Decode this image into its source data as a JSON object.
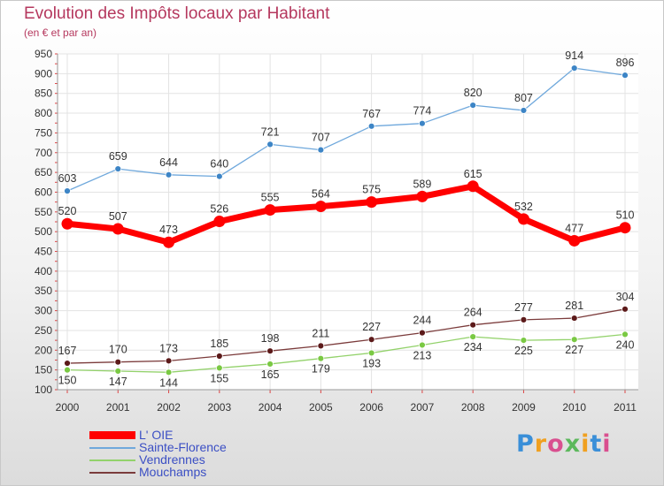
{
  "chart_data": {
    "type": "line",
    "title": "Evolution des Impôts locaux par Habitant",
    "subtitle": "(en € et par an)",
    "xlabel": "",
    "ylabel": "",
    "categories": [
      "2000",
      "2001",
      "2002",
      "2003",
      "2004",
      "2005",
      "2006",
      "2007",
      "2008",
      "2009",
      "2010",
      "2011"
    ],
    "ylim": [
      100,
      950
    ],
    "yticks": [
      100,
      150,
      200,
      250,
      300,
      350,
      400,
      450,
      500,
      550,
      600,
      650,
      700,
      750,
      800,
      850,
      900,
      950
    ],
    "grid": true,
    "legend_position": "bottom-left",
    "series": [
      {
        "name": "L' OIE",
        "values": [
          520,
          507,
          473,
          526,
          555,
          564,
          575,
          589,
          615,
          532,
          477,
          510
        ],
        "color": "#ff0000",
        "marker": "#ff0000"
      },
      {
        "name": "Sainte-Florence",
        "values": [
          603,
          659,
          644,
          640,
          721,
          707,
          767,
          774,
          820,
          807,
          914,
          896
        ],
        "color": "#6fa8dc",
        "marker": "#3d85c6"
      },
      {
        "name": "Vendrennes",
        "values": [
          150,
          147,
          144,
          155,
          165,
          179,
          193,
          213,
          234,
          225,
          227,
          240
        ],
        "color": "#93d26b",
        "marker": "#7ac943"
      },
      {
        "name": "Mouchamps",
        "values": [
          167,
          170,
          173,
          185,
          198,
          211,
          227,
          244,
          264,
          277,
          281,
          304
        ],
        "color": "#7b3b3b",
        "marker": "#5c1a1a"
      }
    ]
  },
  "logo": {
    "text": "Proxiti",
    "colors": [
      "#3a8fd8",
      "#f0a020",
      "#d94f8f",
      "#5cb85c",
      "#f0a020",
      "#3a8fd8",
      "#d94f8f"
    ]
  }
}
